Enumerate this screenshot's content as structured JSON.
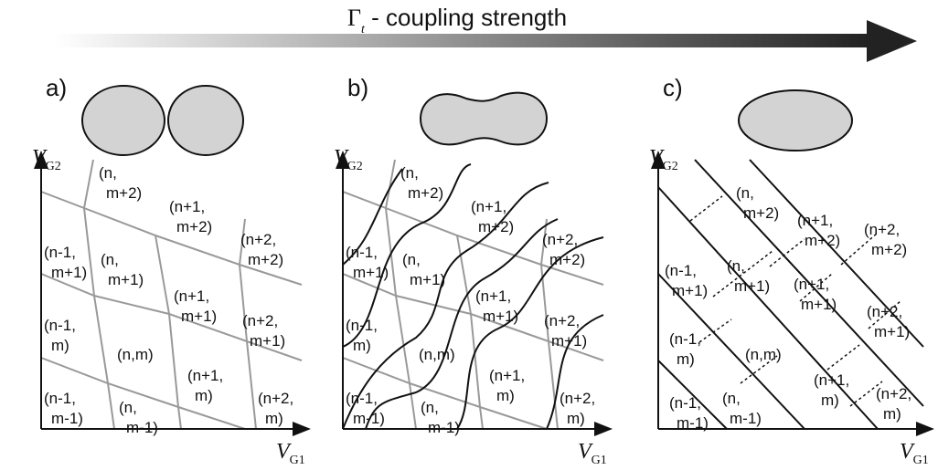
{
  "title": {
    "symbol": "Γ",
    "subscript": "t",
    "text": " - coupling strength"
  },
  "axes": {
    "x": {
      "symbol": "V",
      "subscript": "G1"
    },
    "y": {
      "symbol": "V",
      "subscript": "G2"
    }
  },
  "panels": [
    {
      "label": "a)",
      "cells": [
        {
          "lines": [
            "(n,",
            "m+2)"
          ]
        },
        {
          "lines": [
            "(n+1,",
            "m+2)"
          ]
        },
        {
          "lines": [
            "(n+2,",
            "m+2)"
          ]
        },
        {
          "lines": [
            "(n-1,",
            "m+1)"
          ]
        },
        {
          "lines": [
            "(n,",
            "m+1)"
          ]
        },
        {
          "lines": [
            "(n+1,",
            "m+1)"
          ]
        },
        {
          "lines": [
            "(n+2,",
            "m+1)"
          ]
        },
        {
          "lines": [
            "(n-1,",
            "m)"
          ]
        },
        {
          "lines": [
            "(n,m)"
          ]
        },
        {
          "lines": [
            "(n+1,",
            "m)"
          ]
        },
        {
          "lines": [
            "(n+2,",
            "m)"
          ]
        },
        {
          "lines": [
            "(n-1,",
            "m-1)"
          ]
        },
        {
          "lines": [
            "(n,",
            "m-1)"
          ]
        }
      ]
    },
    {
      "label": "b)",
      "cells": [
        {
          "lines": [
            "(n,",
            "m+2)"
          ]
        },
        {
          "lines": [
            "(n+1,",
            "m+2)"
          ]
        },
        {
          "lines": [
            "(n+2,",
            "m+2)"
          ]
        },
        {
          "lines": [
            "(n-1,",
            "m+1)"
          ]
        },
        {
          "lines": [
            "(n,",
            "m+1)"
          ]
        },
        {
          "lines": [
            "(n+1,",
            "m+1)"
          ]
        },
        {
          "lines": [
            "(n+2,",
            "m+1)"
          ]
        },
        {
          "lines": [
            "(n-1,",
            "m)"
          ]
        },
        {
          "lines": [
            "(n,m)"
          ]
        },
        {
          "lines": [
            "(n+1,",
            "m)"
          ]
        },
        {
          "lines": [
            "(n+2,",
            "m)"
          ]
        },
        {
          "lines": [
            "(n-1,",
            "m-1)"
          ]
        },
        {
          "lines": [
            "(n,",
            "m-1)"
          ]
        }
      ]
    },
    {
      "label": "c)",
      "cells": [
        {
          "lines": [
            "(n,",
            "m+2)"
          ]
        },
        {
          "lines": [
            "(n+1,",
            "m+2)"
          ]
        },
        {
          "lines": [
            "(n+2,",
            "m+2)"
          ]
        },
        {
          "lines": [
            "(n-1,",
            "m+1)"
          ]
        },
        {
          "lines": [
            "(n,",
            "m+1)"
          ]
        },
        {
          "lines": [
            "(n+1,",
            "m+1)"
          ]
        },
        {
          "lines": [
            "(n+2,",
            "m+1)"
          ]
        },
        {
          "lines": [
            "(n-1,",
            "m)"
          ]
        },
        {
          "lines": [
            "(n,m)"
          ]
        },
        {
          "lines": [
            "(n+1,",
            "m)"
          ]
        },
        {
          "lines": [
            "(n+2,",
            "m)"
          ]
        },
        {
          "lines": [
            "(n-1,",
            "m-1)"
          ]
        },
        {
          "lines": [
            "(n,",
            "m-1)"
          ]
        }
      ]
    }
  ]
}
